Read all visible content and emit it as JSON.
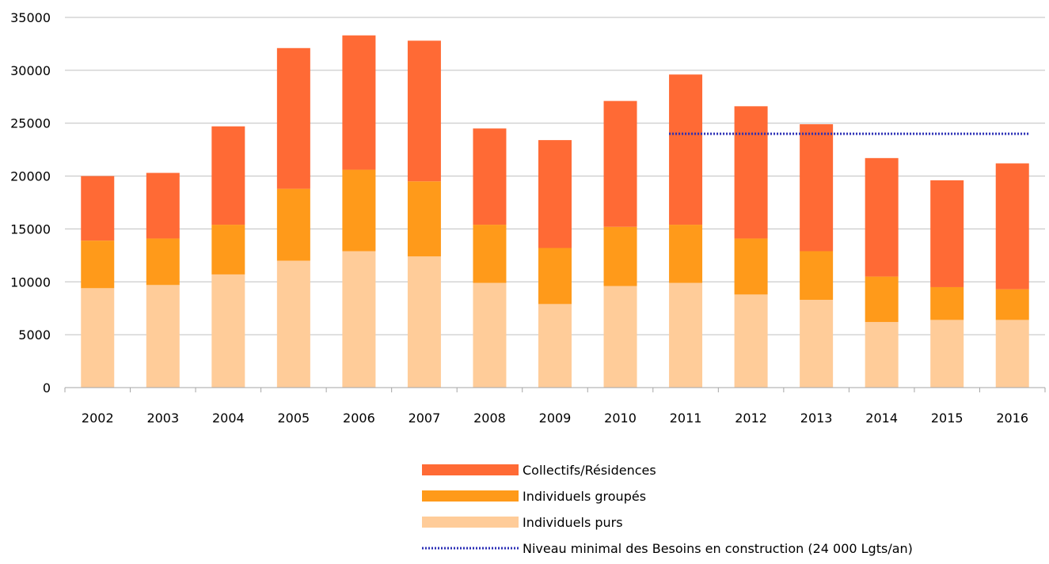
{
  "chart_data": {
    "type": "bar",
    "stacked": true,
    "title": "",
    "xlabel": "",
    "ylabel": "",
    "ylim": [
      0,
      35000
    ],
    "yticks": [
      0,
      5000,
      10000,
      15000,
      20000,
      25000,
      30000,
      35000
    ],
    "grid": true,
    "legend_position": "bottom-center",
    "categories": [
      "2002",
      "2003",
      "2004",
      "2005",
      "2006",
      "2007",
      "2008",
      "2009",
      "2010",
      "2011",
      "2012",
      "2013",
      "2014",
      "2015",
      "2016"
    ],
    "series": [
      {
        "name": "Individuels purs",
        "color": "#FFCC99",
        "values": [
          9400,
          9700,
          10700,
          12000,
          12900,
          12400,
          9900,
          7900,
          9600,
          9900,
          8800,
          8300,
          6200,
          6400,
          6400
        ]
      },
      {
        "name": "Individuels groupés",
        "color": "#FF9A1A",
        "values": [
          4500,
          4400,
          4700,
          6800,
          7700,
          7100,
          5500,
          5300,
          5600,
          5500,
          5300,
          4600,
          4300,
          3100,
          2900
        ]
      },
      {
        "name": "Collectifs/Résidences",
        "color": "#FF6A35",
        "values": [
          6100,
          6200,
          9300,
          13300,
          12700,
          13300,
          9100,
          10200,
          11900,
          14200,
          12500,
          12000,
          11200,
          10100,
          11900
        ]
      }
    ],
    "reference_line": {
      "name": "Niveau minimal des Besoins en construction (24 000 Lgts/an)",
      "value": 24000,
      "from": "2011",
      "to": "2016",
      "color": "#2B2FB5"
    },
    "legend_order": [
      "Collectifs/Résidences",
      "Individuels groupés",
      "Individuels purs",
      "Niveau minimal des Besoins en construction (24 000 Lgts/an)"
    ]
  }
}
